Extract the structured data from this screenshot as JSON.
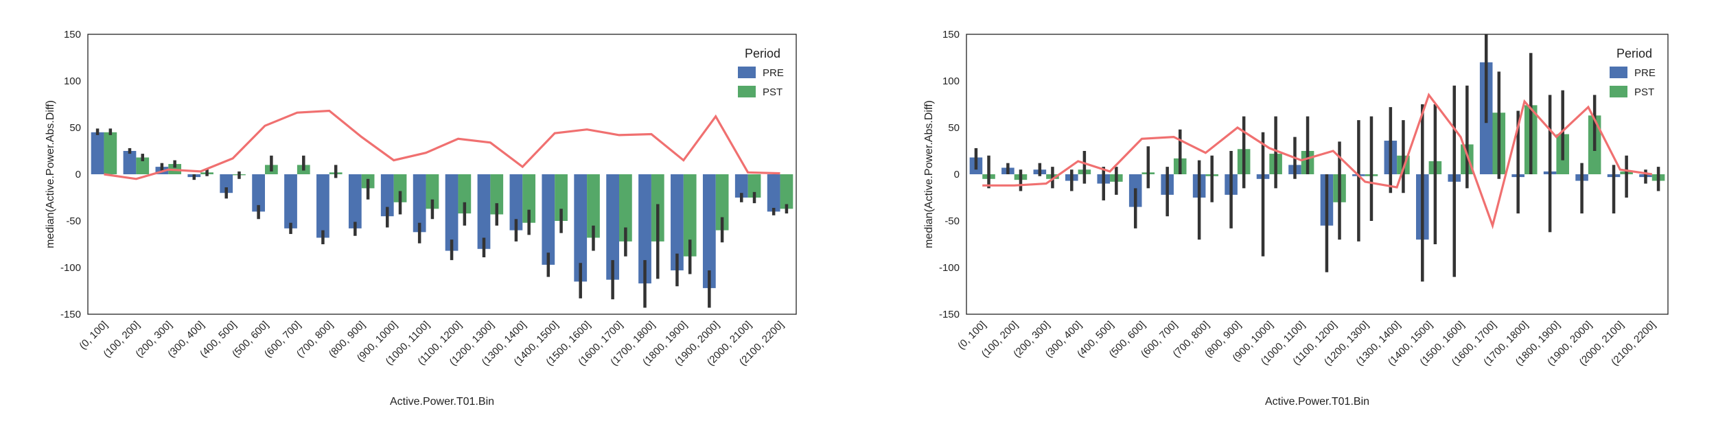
{
  "legend_title": "Period",
  "colors": {
    "PRE": "#4c72b0",
    "PST": "#55a868",
    "line": "#f07070",
    "error": "#333333"
  },
  "chart_data": [
    {
      "type": "bar",
      "xlabel": "Active.Power.T01.Bin",
      "ylabel": "median(Active.Power.Abs.Diff)",
      "ylim": [
        -150,
        150
      ],
      "yticks": [
        -150,
        -100,
        -50,
        0,
        50,
        100,
        150
      ],
      "grid": false,
      "legend_position": "top-right",
      "categories": [
        "(0, 100]",
        "(100, 200]",
        "(200, 300]",
        "(300, 400]",
        "(400, 500]",
        "(500, 600]",
        "(600, 700]",
        "(700, 800]",
        "(800, 900]",
        "(900, 1000]",
        "(1000, 1100]",
        "(1100, 1200]",
        "(1200, 1300]",
        "(1300, 1400]",
        "(1400, 1500]",
        "(1500, 1600]",
        "(1600, 1700]",
        "(1700, 1800]",
        "(1800, 1900]",
        "(1900, 2000]",
        "(2000, 2100]",
        "(2100, 2200]"
      ],
      "series": [
        {
          "name": "PRE",
          "values": [
            45,
            25,
            8,
            -3,
            -20,
            -40,
            -58,
            -68,
            -58,
            -45,
            -62,
            -82,
            -80,
            -60,
            -97,
            -115,
            -113,
            -117,
            -103,
            -122,
            -25,
            -40
          ],
          "ci_low": [
            42,
            22,
            4,
            -6,
            -26,
            -48,
            -64,
            -75,
            -66,
            -57,
            -74,
            -92,
            -89,
            -72,
            -110,
            -133,
            -134,
            -143,
            -120,
            -143,
            -30,
            -44
          ],
          "ci_high": [
            49,
            28,
            12,
            0,
            -14,
            -33,
            -52,
            -60,
            -51,
            -35,
            -52,
            -70,
            -68,
            -48,
            -84,
            -95,
            -92,
            -92,
            -85,
            -103,
            -20,
            -36
          ]
        },
        {
          "name": "PST",
          "values": [
            45,
            18,
            11,
            2,
            -1,
            10,
            10,
            2,
            -15,
            -30,
            -37,
            -42,
            -43,
            -52,
            -50,
            -68,
            -72,
            -72,
            -88,
            -60,
            -25,
            -37
          ],
          "ci_low": [
            42,
            14,
            7,
            -2,
            -5,
            3,
            4,
            -4,
            -27,
            -43,
            -48,
            -55,
            -55,
            -65,
            -63,
            -82,
            -88,
            -112,
            -107,
            -73,
            -31,
            -42
          ],
          "ci_high": [
            49,
            22,
            15,
            6,
            3,
            20,
            20,
            10,
            -5,
            -18,
            -27,
            -30,
            -31,
            -38,
            -37,
            -55,
            -57,
            -32,
            -70,
            -46,
            -19,
            -32
          ]
        }
      ],
      "difference_line": [
        0,
        -5,
        5,
        3,
        17,
        52,
        66,
        68,
        40,
        15,
        23,
        38,
        34,
        8,
        44,
        48,
        42,
        43,
        15,
        62,
        2,
        1
      ]
    },
    {
      "type": "bar",
      "xlabel": "Active.Power.T01.Bin",
      "ylabel": "median(Active.Power.Abs.Diff)",
      "ylim": [
        -150,
        150
      ],
      "yticks": [
        -150,
        -100,
        -50,
        0,
        50,
        100,
        150
      ],
      "grid": false,
      "legend_position": "top-right",
      "categories": [
        "(0, 100]",
        "(100, 200]",
        "(200, 300]",
        "(300, 400]",
        "(400, 500]",
        "(500, 600]",
        "(600, 700]",
        "(700, 800]",
        "(800, 900]",
        "(900, 1000]",
        "(1000, 1100]",
        "(1100, 1200]",
        "(1200, 1300]",
        "(1300, 1400]",
        "(1400, 1500]",
        "(1500, 1600]",
        "(1600, 1700]",
        "(1700, 1800]",
        "(1800, 1900]",
        "(1900, 2000]",
        "(2000, 2100]",
        "(2100, 2200]"
      ],
      "series": [
        {
          "name": "PRE",
          "values": [
            18,
            7,
            5,
            -7,
            -10,
            -35,
            -22,
            -25,
            -22,
            -5,
            10,
            -55,
            -2,
            36,
            -70,
            -8,
            120,
            -3,
            3,
            -7,
            -3,
            -3
          ],
          "ci_low": [
            5,
            0,
            -2,
            -18,
            -28,
            -58,
            -45,
            -70,
            -58,
            -88,
            -5,
            -105,
            -72,
            -20,
            -115,
            -110,
            55,
            -42,
            -62,
            -42,
            -42,
            -10
          ],
          "ci_high": [
            28,
            12,
            12,
            5,
            8,
            -15,
            8,
            15,
            25,
            45,
            40,
            0,
            58,
            72,
            75,
            95,
            175,
            68,
            85,
            12,
            10,
            5
          ]
        },
        {
          "name": "PST",
          "values": [
            -5,
            -6,
            -5,
            5,
            -8,
            2,
            17,
            -2,
            27,
            22,
            25,
            -30,
            -2,
            20,
            14,
            32,
            66,
            74,
            43,
            63,
            3,
            -7
          ],
          "ci_low": [
            -15,
            -18,
            -15,
            -10,
            -22,
            -15,
            0,
            -30,
            -15,
            -15,
            0,
            -70,
            -50,
            -20,
            -75,
            -15,
            -5,
            0,
            15,
            25,
            -25,
            -18
          ],
          "ci_high": [
            20,
            5,
            8,
            25,
            8,
            30,
            48,
            20,
            62,
            62,
            62,
            35,
            62,
            58,
            75,
            95,
            110,
            130,
            90,
            85,
            20,
            8
          ]
        }
      ],
      "difference_line": [
        -12,
        -12,
        -10,
        14,
        3,
        38,
        40,
        23,
        50,
        28,
        15,
        25,
        -8,
        -14,
        85,
        40,
        -55,
        78,
        40,
        72,
        5,
        0
      ]
    }
  ]
}
